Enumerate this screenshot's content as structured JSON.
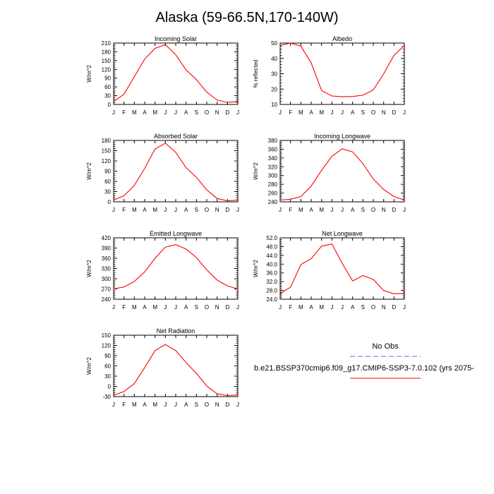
{
  "figure": {
    "title": "Alaska (59-66.5N,170-140W)",
    "legend": {
      "obs_label": "No Obs",
      "case_label": "b.e21.BSSP370cmip6.f09_g17.CMIP6-SSP3-7.0.102 (yrs 2075-",
      "obs_color": "#6666ff",
      "case_color": "#ff0000"
    }
  },
  "chart_data": [
    {
      "type": "line",
      "title": "Incoming Solar",
      "ylabel": "W/m^2",
      "x": [
        "J",
        "F",
        "M",
        "A",
        "M",
        "J",
        "J",
        "A",
        "S",
        "O",
        "N",
        "D",
        "J"
      ],
      "ylim": [
        0,
        210
      ],
      "yticks": [
        "0",
        "30",
        "60",
        "90",
        "120",
        "150",
        "180",
        "210"
      ],
      "series": [
        {
          "values": [
            10,
            35,
            95,
            155,
            192,
            205,
            170,
            118,
            85,
            42,
            15,
            7,
            10
          ],
          "color": "#ff0000"
        }
      ]
    },
    {
      "type": "line",
      "title": "Albedo",
      "ylabel": "% reflected",
      "x": [
        "J",
        "F",
        "M",
        "A",
        "M",
        "J",
        "J",
        "A",
        "S",
        "O",
        "N",
        "D",
        "J"
      ],
      "ylim": [
        10,
        50
      ],
      "yticks": [
        "10",
        "20",
        "30",
        "40",
        "50"
      ],
      "series": [
        {
          "values": [
            48.5,
            50,
            48,
            37,
            19,
            15.5,
            15,
            15.2,
            16,
            19.5,
            30,
            42,
            48.5
          ],
          "color": "#ff0000"
        }
      ]
    },
    {
      "type": "line",
      "title": "Absorbed Solar",
      "ylabel": "W/m^2",
      "x": [
        "J",
        "F",
        "M",
        "A",
        "M",
        "J",
        "J",
        "A",
        "S",
        "O",
        "N",
        "D",
        "J"
      ],
      "ylim": [
        0,
        180
      ],
      "yticks": [
        "0",
        "30",
        "60",
        "90",
        "120",
        "150",
        "180"
      ],
      "series": [
        {
          "values": [
            5,
            18,
            48,
            98,
            155,
            172,
            145,
            100,
            72,
            35,
            10,
            3,
            5
          ],
          "color": "#ff0000"
        }
      ]
    },
    {
      "type": "line",
      "title": "Incoming Longwave",
      "ylabel": "W/m^2",
      "x": [
        "J",
        "F",
        "M",
        "A",
        "M",
        "J",
        "J",
        "A",
        "S",
        "O",
        "N",
        "D",
        "J"
      ],
      "ylim": [
        240,
        380
      ],
      "yticks": [
        "240",
        "260",
        "280",
        "300",
        "320",
        "340",
        "360",
        "380"
      ],
      "series": [
        {
          "values": [
            244,
            246,
            252,
            276,
            312,
            344,
            361,
            354,
            327,
            292,
            268,
            252,
            244
          ],
          "color": "#ff0000"
        }
      ]
    },
    {
      "type": "line",
      "title": "Emitted Longwave",
      "ylabel": "W/m^2",
      "x": [
        "J",
        "F",
        "M",
        "A",
        "M",
        "J",
        "J",
        "A",
        "S",
        "O",
        "N",
        "D",
        "J"
      ],
      "ylim": [
        240,
        420
      ],
      "yticks": [
        "240",
        "270",
        "300",
        "330",
        "360",
        "390",
        "420"
      ],
      "series": [
        {
          "values": [
            270,
            276,
            292,
            320,
            360,
            393,
            400,
            387,
            362,
            326,
            296,
            279,
            270
          ],
          "color": "#ff0000"
        }
      ]
    },
    {
      "type": "line",
      "title": "Net Longwave",
      "ylabel": "W/m^2",
      "x": [
        "J",
        "F",
        "M",
        "A",
        "M",
        "J",
        "J",
        "A",
        "S",
        "O",
        "N",
        "D",
        "J"
      ],
      "ylim": [
        24,
        52
      ],
      "yticks": [
        "24.0",
        "28.0",
        "32.0",
        "36.0",
        "40.0",
        "44.0",
        "48.0",
        "52.0"
      ],
      "series": [
        {
          "values": [
            26.5,
            29.5,
            39.8,
            42.5,
            48.2,
            49.2,
            40.3,
            32.3,
            34.8,
            33,
            28,
            26.5,
            26.6
          ],
          "color": "#ff0000"
        }
      ]
    },
    {
      "type": "line",
      "title": "Net Radiation",
      "ylabel": "W/m^2",
      "x": [
        "J",
        "F",
        "M",
        "A",
        "M",
        "J",
        "J",
        "A",
        "S",
        "O",
        "N",
        "D",
        "J"
      ],
      "ylim": [
        -30,
        150
      ],
      "yticks": [
        "-30",
        "0",
        "30",
        "60",
        "90",
        "120",
        "150"
      ],
      "series": [
        {
          "values": [
            -26,
            -15,
            8,
            55,
            105,
            123,
            105,
            70,
            38,
            1,
            -22,
            -27,
            -25
          ],
          "color": "#ff0000"
        }
      ]
    }
  ]
}
